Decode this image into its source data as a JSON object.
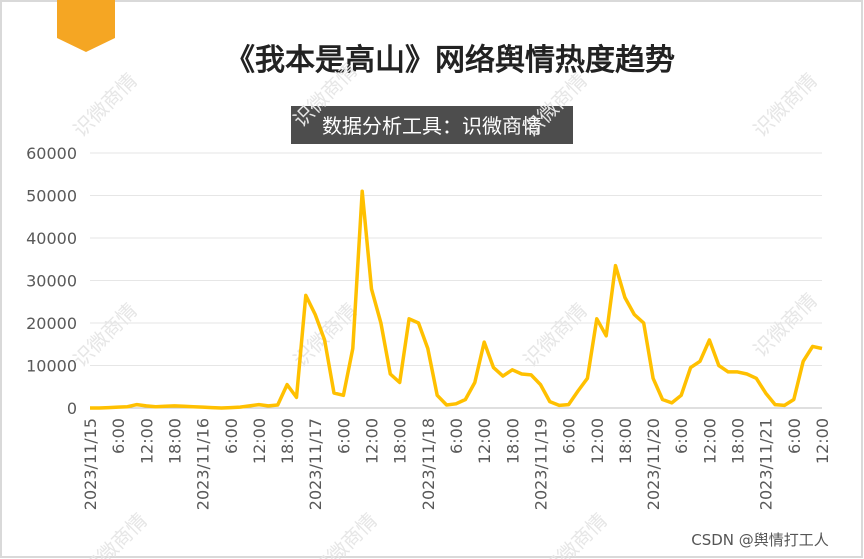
{
  "chart_data": {
    "type": "line",
    "title": "《我本是高山》网络舆情热度趋势",
    "subtitle": "数据分析工具：识微商情",
    "watermark": "识微商情",
    "credit": "CSDN @舆情打工人",
    "categories": [
      "2023/11/15",
      null,
      null,
      "6:00",
      null,
      null,
      "12:00",
      null,
      null,
      "18:00",
      null,
      null,
      "2023/11/16",
      null,
      null,
      "6:00",
      null,
      null,
      "12:00",
      null,
      null,
      "18:00",
      null,
      null,
      "2023/11/17",
      null,
      null,
      "6:00",
      null,
      null,
      "12:00",
      null,
      null,
      "18:00",
      null,
      null,
      "2023/11/18",
      null,
      null,
      "6:00",
      null,
      null,
      "12:00",
      null,
      null,
      "18:00",
      null,
      null,
      "2023/11/19",
      null,
      null,
      "6:00",
      null,
      null,
      "12:00",
      null,
      null,
      "18:00",
      null,
      null,
      "2023/11/20",
      null,
      null,
      "6:00",
      null,
      null,
      "12:00",
      null,
      null,
      "18:00",
      null,
      null,
      "2023/11/21",
      null,
      null,
      "6:00",
      null,
      null,
      "12:00"
    ],
    "values": [
      0,
      0,
      100,
      200,
      300,
      800,
      500,
      300,
      400,
      500,
      400,
      300,
      200,
      100,
      0,
      100,
      200,
      500,
      800,
      500,
      700,
      5500,
      2500,
      26500,
      22000,
      16000,
      3500,
      3000,
      14000,
      51000,
      28000,
      20000,
      8000,
      6000,
      21000,
      20000,
      14000,
      3000,
      700,
      1000,
      2000,
      6000,
      15500,
      9500,
      7500,
      9000,
      8000,
      7800,
      5500,
      1500,
      600,
      800,
      4000,
      7000,
      21000,
      17000,
      33500,
      26000,
      22000,
      20000,
      7000,
      2000,
      1200,
      3000,
      9500,
      11000,
      16000,
      10000,
      8500,
      8500,
      8000,
      7000,
      3500,
      800,
      600,
      2000,
      11000,
      14500,
      14000
    ],
    "color": "#ffc000",
    "ylim": [
      0,
      60000
    ],
    "yticks": [
      0,
      10000,
      20000,
      30000,
      40000,
      50000,
      60000
    ],
    "grid": true
  }
}
